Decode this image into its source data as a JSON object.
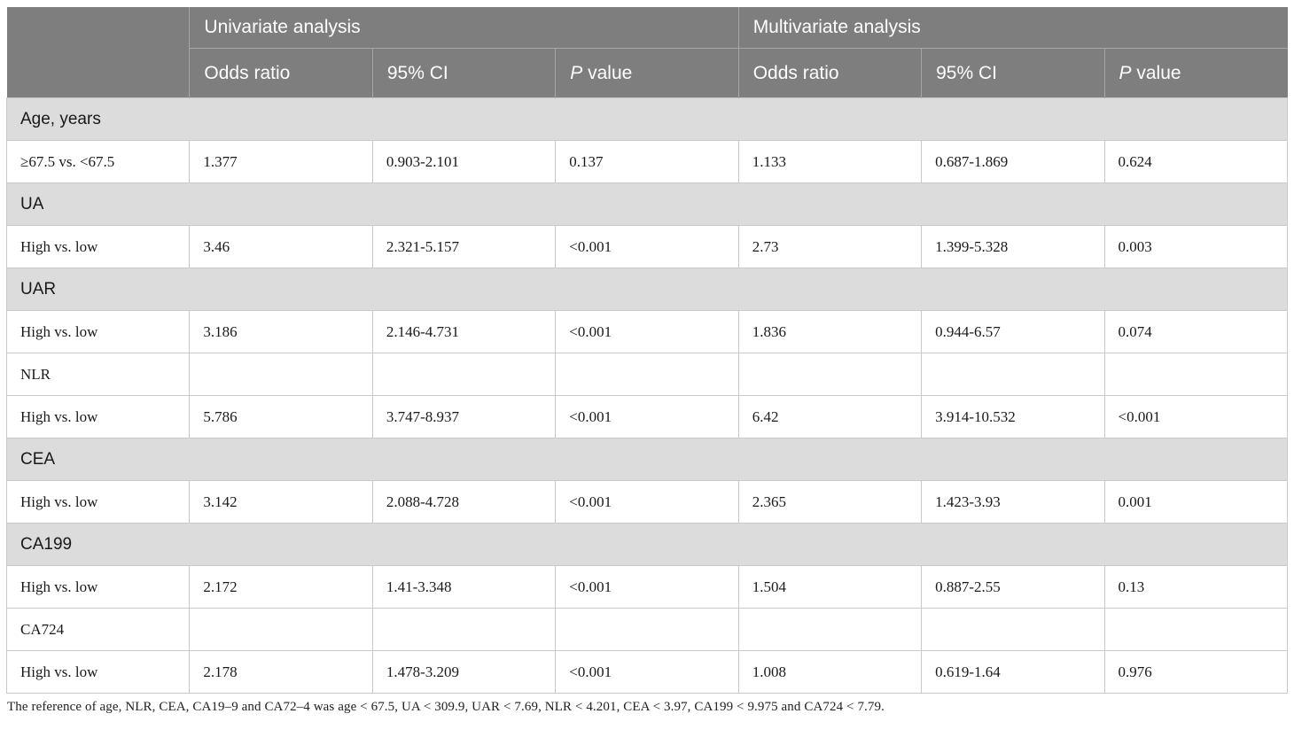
{
  "table": {
    "corner_label": "",
    "group_headers": [
      {
        "label": "Univariate analysis"
      },
      {
        "label": "Multivariate analysis"
      }
    ],
    "col_headers": [
      "Odds ratio",
      "95% CI",
      "P value",
      "Odds ratio",
      "95% CI",
      "P value"
    ],
    "rows": [
      {
        "type": "section",
        "label": "Age, years"
      },
      {
        "type": "data",
        "label": "≥67.5 vs. <67.5",
        "cells": [
          "1.377",
          "0.903-2.101",
          "0.137",
          "1.133",
          "0.687-1.869",
          "0.624"
        ]
      },
      {
        "type": "section",
        "label": "UA"
      },
      {
        "type": "data",
        "label": "High vs. low",
        "cells": [
          "3.46",
          "2.321-5.157",
          "<0.001",
          "2.73",
          "1.399-5.328",
          "0.003"
        ]
      },
      {
        "type": "section",
        "label": "UAR"
      },
      {
        "type": "data",
        "label": "High vs. low",
        "cells": [
          "3.186",
          "2.146-4.731",
          "<0.001",
          "1.836",
          "0.944-6.57",
          "0.074"
        ]
      },
      {
        "type": "data",
        "label": "NLR",
        "cells": [
          "",
          "",
          "",
          "",
          "",
          ""
        ]
      },
      {
        "type": "data",
        "label": "High vs. low",
        "cells": [
          "5.786",
          "3.747-8.937",
          "<0.001",
          "6.42",
          "3.914-10.532",
          "<0.001"
        ]
      },
      {
        "type": "section",
        "label": "CEA"
      },
      {
        "type": "data",
        "label": "High vs. low",
        "cells": [
          "3.142",
          "2.088-4.728",
          "<0.001",
          "2.365",
          "1.423-3.93",
          "0.001"
        ]
      },
      {
        "type": "section",
        "label": "CA199"
      },
      {
        "type": "data",
        "label": "High vs. low",
        "cells": [
          "2.172",
          "1.41-3.348",
          "<0.001",
          "1.504",
          "0.887-2.55",
          "0.13"
        ]
      },
      {
        "type": "data",
        "label": "CA724",
        "cells": [
          "",
          "",
          "",
          "",
          "",
          ""
        ]
      },
      {
        "type": "data",
        "label": "High vs. low",
        "cells": [
          "2.178",
          "1.478-3.209",
          "<0.001",
          "1.008",
          "0.619-1.64",
          "0.976"
        ]
      }
    ],
    "footnote": "The reference of age, NLR, CEA, CA19–9 and CA72–4 was age < 67.5, UA < 309.9, UAR < 7.69, NLR < 4.201, CEA < 3.97, CA199 < 9.975 and CA724 < 7.79."
  },
  "colors": {
    "header_bg": "#7e7e7e",
    "header_text": "#ffffff",
    "section_bg": "#dcdcdc",
    "body_border": "#c9c9c9",
    "header_border": "#a6a6a6",
    "body_text": "#1a1a1a"
  }
}
